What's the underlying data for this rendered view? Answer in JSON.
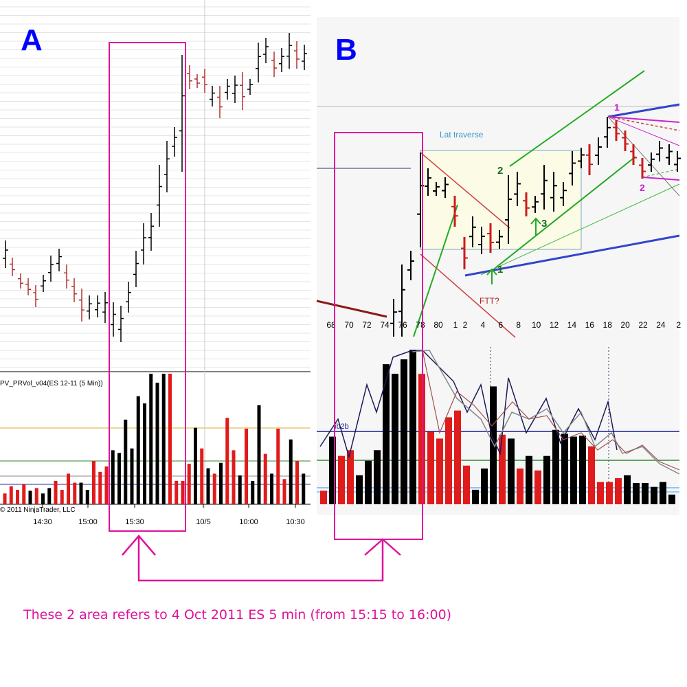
{
  "panel_a": {
    "label": "A",
    "indicator_label": "PV_PRVol_v04(ES 12-11 (5 Min))",
    "copyright": "© 2011 NinjaTrader, LLC",
    "time_ticks": [
      "14:30",
      "15:00",
      "15:30",
      "10/5",
      "10:00",
      "10:30"
    ]
  },
  "panel_b": {
    "label": "B",
    "annotation_traverse": "Lat traverse",
    "annotation_ftt": "FTT?",
    "annotation_ib2b": "ib2b",
    "marker_labels": [
      "2",
      "3",
      "1",
      "1",
      "2"
    ],
    "bar_ticks": [
      "68",
      "70",
      "72",
      "74",
      "76",
      "78",
      "80",
      "1",
      "2",
      "4",
      "6",
      "8",
      "10",
      "12",
      "14",
      "16",
      "18",
      "20",
      "22",
      "24",
      "2"
    ]
  },
  "caption": "These 2 area refers to 4 Oct 2011 ES 5 min (from 15:15 to 16:00)",
  "colors": {
    "label_blue": "#0000ff",
    "highlight_magenta": "#e0119b",
    "up_bar": "#000000",
    "down_bar": "#e01b1b",
    "trend_green": "#22aa22",
    "channel_blue": "#3344cc"
  },
  "chart_data": [
    {
      "type": "bar",
      "title": "A",
      "series_name": "PV_PRVol_v04(ES 12-11 (5 Min))",
      "categories": [
        "14:30",
        "15:00",
        "15:30",
        "10/5",
        "10:00",
        "10:30"
      ],
      "volume": [
        12,
        20,
        16,
        22,
        15,
        18,
        12,
        18,
        26,
        16,
        34,
        24,
        24,
        16,
        48,
        36,
        42,
        60,
        57,
        94,
        62,
        120,
        112,
        145,
        135,
        145,
        145,
        26,
        26,
        45,
        85,
        62,
        40,
        34,
        46,
        96,
        60,
        32,
        84,
        26,
        110,
        56,
        34,
        84,
        28,
        72,
        48,
        34
      ],
      "volume_direction": [
        "down",
        "down",
        "down",
        "down",
        "up",
        "down",
        "up",
        "up",
        "down",
        "down",
        "down",
        "down",
        "up",
        "up",
        "down",
        "down",
        "down",
        "up",
        "up",
        "up",
        "up",
        "up",
        "up",
        "up",
        "up",
        "up",
        "down",
        "down",
        "down",
        "down",
        "up",
        "down",
        "up",
        "down",
        "up",
        "down",
        "down",
        "up",
        "down",
        "up",
        "up",
        "down",
        "up",
        "down",
        "down",
        "up",
        "down",
        "up"
      ]
    },
    {
      "type": "bar",
      "title": "B",
      "categories": [
        "68",
        "70",
        "72",
        "74",
        "76",
        "78",
        "80",
        "1",
        "2",
        "4",
        "6",
        "8",
        "10",
        "12",
        "14",
        "16",
        "18",
        "20",
        "22",
        "24"
      ],
      "volume": [
        14,
        70,
        50,
        56,
        30,
        45,
        56,
        145,
        135,
        150,
        160,
        135,
        75,
        68,
        90,
        97,
        40,
        15,
        37,
        122,
        72,
        68,
        37,
        50,
        35,
        50,
        77,
        73,
        70,
        71,
        60,
        23,
        23,
        27,
        30,
        22,
        22,
        18,
        23,
        10
      ]
    }
  ]
}
